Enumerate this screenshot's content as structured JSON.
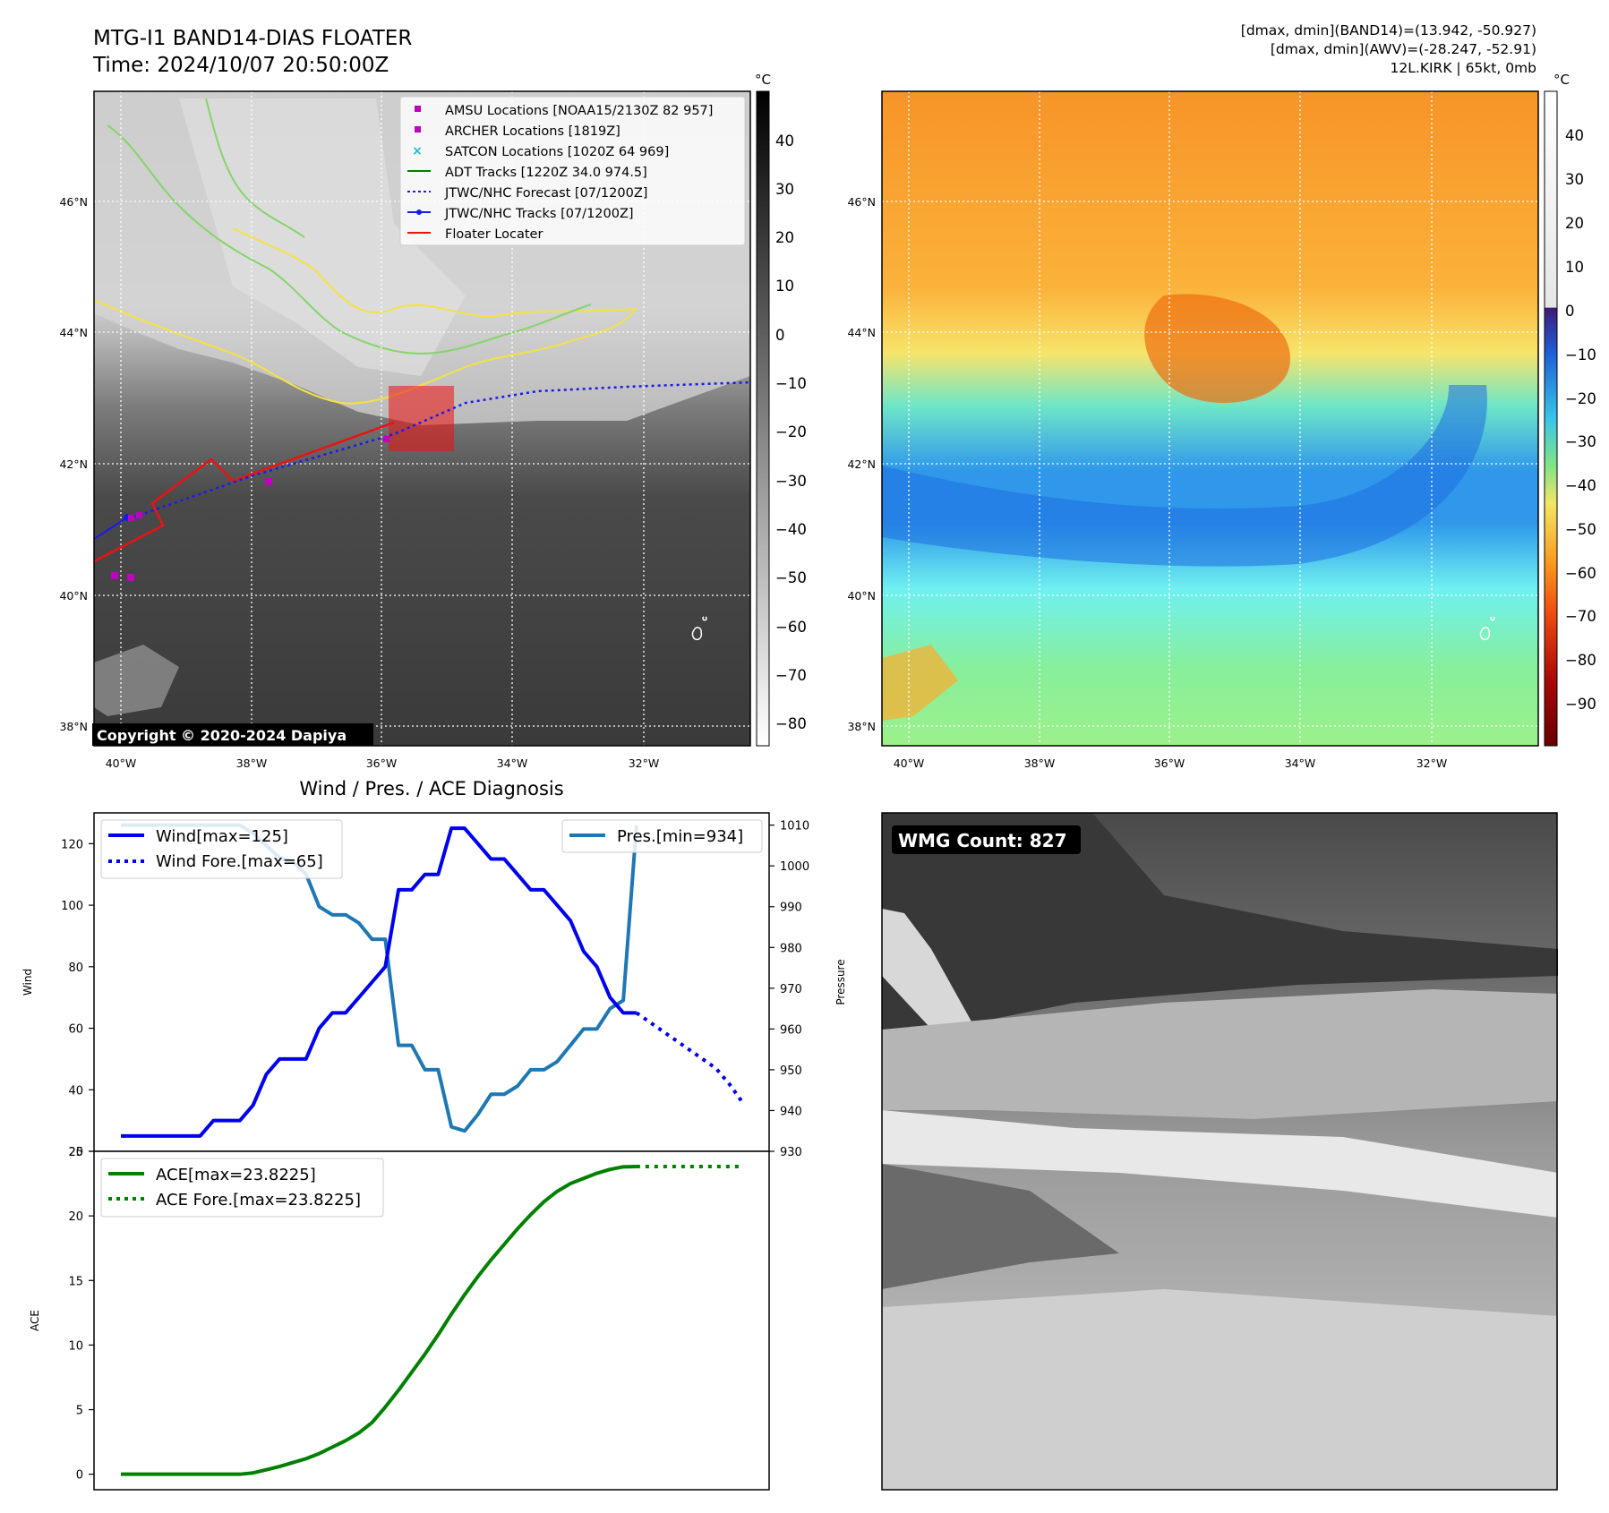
{
  "header": {
    "title_line1": "MTG-I1 BAND14-DIAS FLOATER",
    "title_line2": "Time: 2024/10/07 20:50:00Z",
    "stats_line1": "[dmax, dmin](BAND14)=(13.942, -50.927)",
    "stats_line2": "[dmax, dmin](AWV)=(-28.247, -52.91)",
    "stats_line3": "12L.KIRK | 65kt, 0mb"
  },
  "colors": {
    "wind": "#0000ee",
    "pres": "#1f77b4",
    "ace": "#008000",
    "float": "#ee1111",
    "amsu": "#c000c0",
    "satcon": "#17becf",
    "coast_yellow": "#f4e242",
    "coast_green": "#86d46b"
  },
  "map": {
    "lat_labels": [
      "46°N",
      "44°N",
      "42°N",
      "40°N",
      "38°N"
    ],
    "lon_labels": [
      "40°W",
      "38°W",
      "36°W",
      "34°W",
      "32°W"
    ],
    "copyright": "Copyright © 2020-2024 Dapiya",
    "legend": [
      "AMSU Locations [NOAA15/2130Z 82 957]",
      "ARCHER Locations [1819Z]",
      "SATCON Locations [1020Z 64 969]",
      "ADT Tracks [1220Z 34.0 974.5]",
      "JTWC/NHC Forecast [07/1200Z]",
      "JTWC/NHC Tracks [07/1200Z]",
      "Floater Locater"
    ],
    "cbar_unit": "°C",
    "gray_cbar_ticks": [
      "40",
      "30",
      "20",
      "10",
      "0",
      "−10",
      "−20",
      "−30",
      "−40",
      "−50",
      "−60",
      "−70",
      "−80"
    ],
    "color_cbar_ticks": [
      "40",
      "30",
      "20",
      "10",
      "0",
      "−10",
      "−20",
      "−30",
      "−40",
      "−50",
      "−60",
      "−70",
      "−80",
      "−90"
    ]
  },
  "wmg": {
    "label": "WMG Count: 827"
  },
  "chart_data": [
    {
      "type": "line",
      "title": "Wind / Pres. / ACE Diagnosis",
      "ylabel": "Wind",
      "y2label": "Pressure",
      "ylim": [
        20,
        130
      ],
      "y2lim": [
        930,
        1013
      ],
      "yticks": [
        20,
        40,
        60,
        80,
        100,
        120
      ],
      "y2ticks": [
        930,
        940,
        950,
        960,
        970,
        980,
        990,
        1000,
        1010
      ],
      "series": [
        {
          "name": "Wind[max=125]",
          "values": [
            25,
            25,
            25,
            25,
            25,
            25,
            25,
            30,
            30,
            30,
            35,
            45,
            50,
            50,
            50,
            60,
            65,
            65,
            70,
            75,
            80,
            105,
            105,
            110,
            110,
            125,
            125,
            120,
            115,
            115,
            110,
            105,
            105,
            100,
            95,
            85,
            80,
            70,
            65,
            65
          ]
        },
        {
          "name": "Wind Fore.[max=65]",
          "start_index": 39,
          "values": [
            65,
            62,
            59,
            56,
            53,
            50,
            47,
            42,
            36
          ]
        },
        {
          "name": "Pres.[min=934]",
          "axis": "right",
          "values": [
            1010,
            1010,
            1010,
            1010,
            1010,
            1010,
            1010,
            1010,
            1010,
            1010,
            1008,
            1005,
            1002,
            1001,
            998,
            990,
            988,
            988,
            986,
            982,
            982,
            956,
            956,
            950,
            950,
            936,
            935,
            939,
            944,
            944,
            946,
            950,
            950,
            952,
            956,
            960,
            960,
            965,
            967,
            1010
          ]
        }
      ]
    },
    {
      "type": "line",
      "ylabel": "ACE",
      "ylim": [
        -1.2,
        25
      ],
      "yticks": [
        0,
        5,
        10,
        15,
        20,
        25
      ],
      "series": [
        {
          "name": "ACE[max=23.8225]",
          "values": [
            0,
            0,
            0,
            0,
            0,
            0,
            0,
            0,
            0,
            0,
            0.1,
            0.35,
            0.6,
            0.9,
            1.2,
            1.6,
            2.1,
            2.6,
            3.2,
            4,
            5.2,
            6.5,
            7.9,
            9.3,
            10.8,
            12.4,
            13.9,
            15.3,
            16.6,
            17.8,
            19,
            20.1,
            21.1,
            21.9,
            22.5,
            22.9,
            23.3,
            23.6,
            23.8,
            23.82
          ]
        },
        {
          "name": "ACE Fore.[max=23.8225]",
          "start_index": 39,
          "values": [
            23.82,
            23.82,
            23.82,
            23.82,
            23.82,
            23.82,
            23.82,
            23.82,
            23.82
          ]
        }
      ]
    }
  ]
}
